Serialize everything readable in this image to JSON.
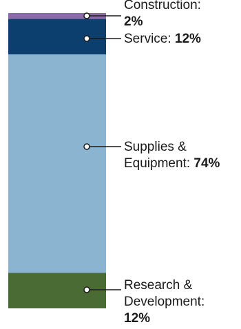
{
  "chart_data": {
    "type": "bar",
    "stacked": true,
    "orientation": "vertical",
    "unit": "%",
    "segments": [
      {
        "name": "Construction",
        "value": 2,
        "value_label": "2%",
        "color": "#8a6aa8"
      },
      {
        "name": "Service",
        "value": 12,
        "value_label": "12%",
        "color": "#0d3f6e"
      },
      {
        "name": "Supplies & Equipment",
        "value": 74,
        "value_label": "74%",
        "color": "#8ab4cf"
      },
      {
        "name": "Research & Development",
        "value": 12,
        "value_label": "12%",
        "color": "#4a6b34"
      }
    ],
    "labels": [
      {
        "lines": [
          "Construction:"
        ],
        "value": "2%"
      },
      {
        "lines": [],
        "value_inline_prefix": "Service: ",
        "value": "12%"
      },
      {
        "lines": [
          "Supplies &"
        ],
        "value_inline_prefix": "Equipment: ",
        "value": "74%"
      },
      {
        "lines": [
          "Research &",
          "Development:"
        ],
        "value": "12%"
      }
    ]
  }
}
